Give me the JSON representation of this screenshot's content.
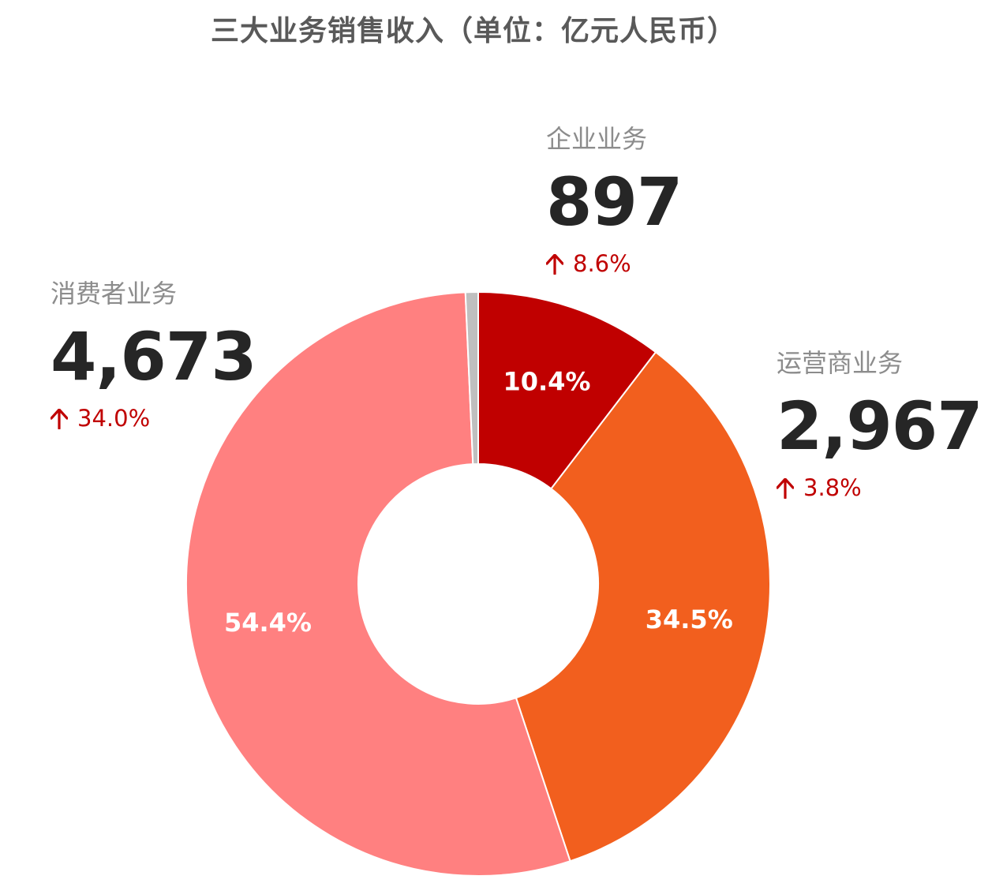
{
  "title": "三大业务销售收入（单位：亿元人民币）",
  "chart_data": {
    "type": "pie",
    "title": "三大业务销售收入（单位：亿元人民币）",
    "donut": true,
    "start": "top",
    "direction": "clockwise",
    "slices": [
      {
        "name": "企业业务",
        "value": 897,
        "percent": 10.4,
        "percent_label": "10.4%",
        "growth": "8.6%",
        "color": "#c00000",
        "label_color": "#ffffff"
      },
      {
        "name": "运营商业务",
        "value": 2967,
        "percent": 34.5,
        "percent_label": "34.5%",
        "growth": "3.8%",
        "color": "#f25f1e",
        "label_color": "#ffffff"
      },
      {
        "name": "消费者业务",
        "value": 4673,
        "percent": 54.4,
        "percent_label": "54.4%",
        "growth": "34.0%",
        "color": "#ff8080",
        "label_color": "#ffffff"
      },
      {
        "name": "",
        "value": null,
        "percent": 0.7,
        "percent_label": "",
        "growth": "",
        "color": "#bfbfbf",
        "label_color": ""
      }
    ],
    "value_labels": {
      "enterprise": "897",
      "carrier": "2,967",
      "consumer": "4,673"
    },
    "growth_color": "#c00000",
    "icon": "arrow-up-icon"
  }
}
